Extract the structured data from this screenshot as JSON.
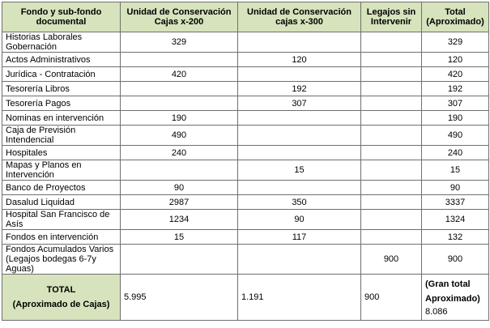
{
  "table": {
    "headers": [
      "Fondo y sub-fondo documental",
      "Unidad de Conservación Cajas x-200",
      "Unidad de Conservación cajas x-300",
      "Legajos sin Intervenir",
      "Total (Aproximado)"
    ],
    "rows": [
      {
        "fondo": "Historias Laborales Gobernación",
        "x200": "329",
        "x300": "",
        "legajos": "",
        "total": "329"
      },
      {
        "fondo": "Actos Administrativos",
        "x200": "",
        "x300": "120",
        "legajos": "",
        "total": "120"
      },
      {
        "fondo": "Jurídica - Contratación",
        "x200": "420",
        "x300": "",
        "legajos": "",
        "total": "420"
      },
      {
        "fondo": "Tesorería Libros",
        "x200": "",
        "x300": "192",
        "legajos": "",
        "total": "192"
      },
      {
        "fondo": "Tesorería Pagos",
        "x200": "",
        "x300": "307",
        "legajos": "",
        "total": "307"
      },
      {
        "fondo": "Nominas en intervención",
        "x200": "190",
        "x300": "",
        "legajos": "",
        "total": "190"
      },
      {
        "fondo": "Caja de Previsión Intendencial",
        "x200": "490",
        "x300": "",
        "legajos": "",
        "total": "490"
      },
      {
        "fondo": "Hospitales",
        "x200": "240",
        "x300": "",
        "legajos": "",
        "total": "240"
      },
      {
        "fondo": "Mapas y Planos en Intervención",
        "x200": "",
        "x300": "15",
        "legajos": "",
        "total": "15"
      },
      {
        "fondo": "Banco de Proyectos",
        "x200": "90",
        "x300": "",
        "legajos": "",
        "total": "90"
      },
      {
        "fondo": "Dasalud Liquidad",
        "x200": "2987",
        "x300": "350",
        "legajos": "",
        "total": "3337"
      },
      {
        "fondo": "Hospital San Francisco de Asís",
        "x200": "1234",
        "x300": "90",
        "legajos": "",
        "total": "1324"
      },
      {
        "fondo": "Fondos en intervención",
        "x200": "15",
        "x300": "117",
        "legajos": "",
        "total": "132"
      },
      {
        "fondo": "Fondos Acumulados Varios (Legajos bodegas 6-7y Aguas)",
        "x200": "",
        "x300": "",
        "legajos": "900",
        "total": "900"
      }
    ],
    "totals": {
      "label_line1": "TOTAL",
      "label_line2": "(Aproximado de Cajas)",
      "x200": "5.995",
      "x300": "1.191",
      "legajos": "900",
      "grand_line1": "(Gran total",
      "grand_line2": "Aproximado)",
      "grand_value": "8.086"
    },
    "colors": {
      "header_bg": "#d6e3bc",
      "border": "#6f6f6f"
    }
  }
}
